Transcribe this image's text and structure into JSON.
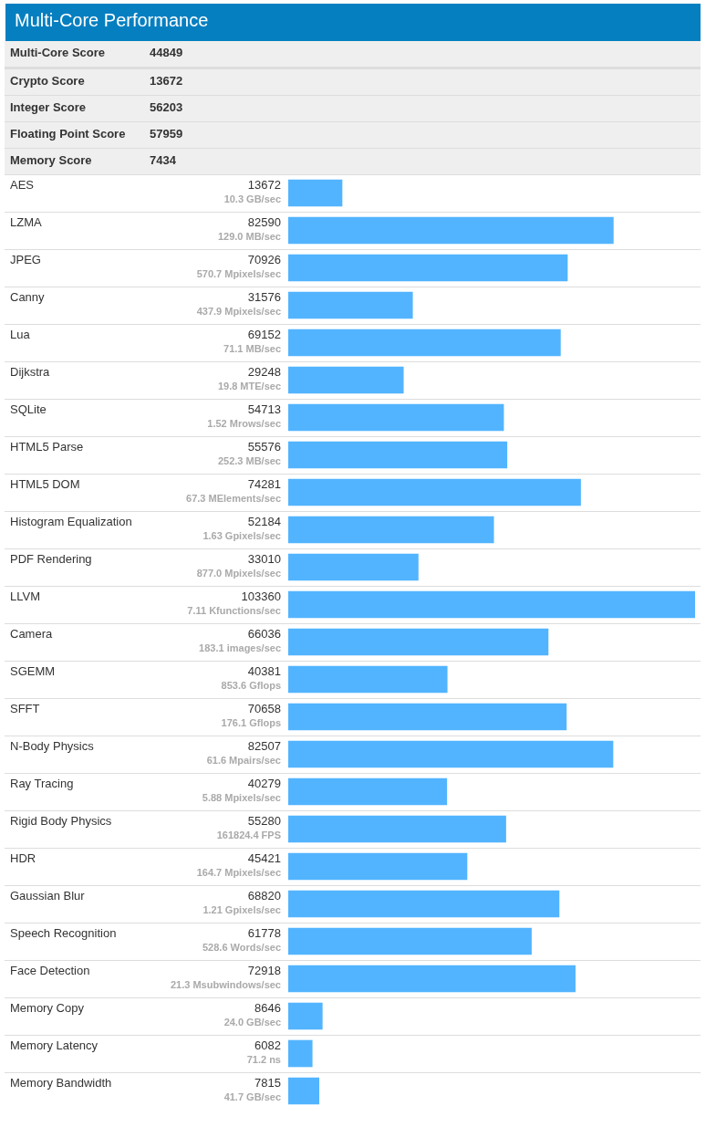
{
  "chart_data": [
    {
      "type": "other",
      "title": "Multi-Core Performance",
      "categories": [
        "Multi-Core Score",
        "Crypto Score",
        "Integer Score",
        "Floating Point Score",
        "Memory Score"
      ],
      "values": [
        44849,
        13672,
        56203,
        57959,
        7434
      ],
      "data_labels": true
    },
    {
      "type": "bar",
      "orientation": "horizontal",
      "categories": [
        "AES",
        "LZMA",
        "JPEG",
        "Canny",
        "Lua",
        "Dijkstra",
        "SQLite",
        "HTML5 Parse",
        "HTML5 DOM",
        "Histogram Equalization",
        "PDF Rendering",
        "LLVM",
        "Camera",
        "SGEMM",
        "SFFT",
        "N-Body Physics",
        "Ray Tracing",
        "Rigid Body Physics",
        "HDR",
        "Gaussian Blur",
        "Speech Recognition",
        "Face Detection",
        "Memory Copy",
        "Memory Latency",
        "Memory Bandwidth"
      ],
      "values": [
        13672,
        82590,
        70926,
        31576,
        69152,
        29248,
        54713,
        55576,
        74281,
        52184,
        33010,
        103360,
        66036,
        40381,
        70658,
        82507,
        40279,
        55280,
        45421,
        68820,
        61778,
        72918,
        8646,
        6082,
        7815
      ],
      "color": "#52b4ff",
      "data_labels": true,
      "tick_labels": "y",
      "annotations": [
        "10.3 GB/sec",
        "129.0 MB/sec",
        "570.7 Mpixels/sec",
        "437.9 Mpixels/sec",
        "71.1 MB/sec",
        "19.8 MTE/sec",
        "1.52 Mrows/sec",
        "252.3 MB/sec",
        "67.3 MElements/sec",
        "1.63 Gpixels/sec",
        "877.0 Mpixels/sec",
        "7.11 Kfunctions/sec",
        "183.1 images/sec",
        "853.6 Gflops",
        "176.1 Gflops",
        "61.6 Mpairs/sec",
        "5.88 Mpixels/sec",
        "161824.4 FPS",
        "164.7 Mpixels/sec",
        "1.21 Gpixels/sec",
        "528.6 Words/sec",
        "21.3 Msubwindows/sec",
        "24.0 GB/sec",
        "71.2 ns",
        "41.7 GB/sec"
      ]
    }
  ]
}
